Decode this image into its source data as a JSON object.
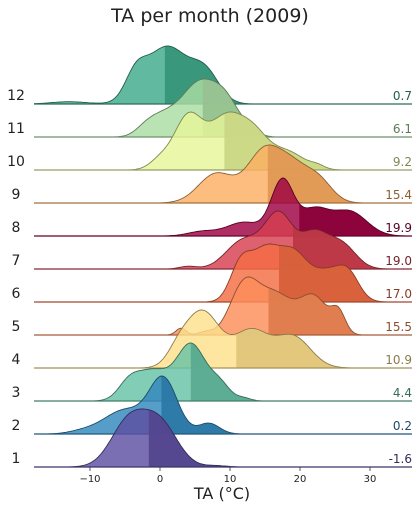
{
  "chart_data": {
    "type": "ridgeline",
    "title": "TA per month (2009)",
    "xlabel": "TA (°C)",
    "xlim": [
      -18,
      36
    ],
    "xticks": [
      "−10",
      "0",
      "10",
      "20",
      "30"
    ],
    "xtick_values": [
      -10,
      0,
      10,
      20,
      30
    ],
    "series": [
      {
        "name": "1",
        "mean": "-1.6",
        "color": "#5e4fa2",
        "peaks": [
          [
            -4.5,
            2.5,
            1.0
          ],
          [
            0,
            2.5,
            0.95
          ],
          [
            8,
            1.5,
            0.03
          ]
        ]
      },
      {
        "name": "2",
        "mean": "0.2",
        "color": "#3288bd",
        "peaks": [
          [
            0.5,
            2.0,
            1.0
          ],
          [
            -5,
            3.0,
            0.45
          ],
          [
            -11,
            2.0,
            0.05
          ],
          [
            7,
            1.5,
            0.2
          ]
        ]
      },
      {
        "name": "3",
        "mean": "4.4",
        "color": "#66c2a5",
        "peaks": [
          [
            4.5,
            2.0,
            1.0
          ],
          [
            -1,
            2.5,
            0.55
          ],
          [
            -4.5,
            1.5,
            0.25
          ],
          [
            8.5,
            1.5,
            0.3
          ],
          [
            12,
            1.0,
            0.05
          ]
        ]
      },
      {
        "name": "4",
        "mean": "10.9",
        "color": "#fee08b",
        "peaks": [
          [
            6,
            2.5,
            1.0
          ],
          [
            13,
            2.5,
            0.65
          ],
          [
            19,
            2.5,
            0.55
          ],
          [
            2.5,
            1.5,
            0.2
          ]
        ]
      },
      {
        "name": "5",
        "mean": "15.5",
        "color": "#fc8d59",
        "peaks": [
          [
            12,
            2.0,
            0.85
          ],
          [
            16.5,
            2.5,
            0.7
          ],
          [
            22,
            2.0,
            0.65
          ],
          [
            25.5,
            1.0,
            0.35
          ],
          [
            3,
            0.7,
            0.12
          ],
          [
            6.5,
            1.0,
            0.05
          ]
        ]
      },
      {
        "name": "6",
        "mean": "17.0",
        "color": "#f46d43",
        "peaks": [
          [
            11.5,
            1.5,
            0.65
          ],
          [
            15,
            2.0,
            0.9
          ],
          [
            19,
            2.0,
            0.8
          ],
          [
            24,
            2.5,
            0.55
          ],
          [
            27,
            1.5,
            0.35
          ]
        ]
      },
      {
        "name": "7",
        "mean": "19.0",
        "color": "#d53e4f",
        "peaks": [
          [
            12,
            2.5,
            0.55
          ],
          [
            17,
            2.0,
            1.0
          ],
          [
            22,
            2.0,
            0.65
          ],
          [
            26,
            2.0,
            0.45
          ],
          [
            4,
            1.2,
            0.05
          ]
        ]
      },
      {
        "name": "8",
        "mean": "19.9",
        "color": "#9e0142",
        "peaks": [
          [
            17.5,
            1.6,
            1.0
          ],
          [
            22,
            2.0,
            0.45
          ],
          [
            27,
            2.5,
            0.45
          ],
          [
            12,
            2.5,
            0.25
          ],
          [
            6,
            2.0,
            0.08
          ]
        ]
      },
      {
        "name": "9",
        "mean": "15.4",
        "color": "#fdae61",
        "peaks": [
          [
            15,
            2.5,
            1.0
          ],
          [
            8,
            2.5,
            0.55
          ],
          [
            22.5,
            2.0,
            0.45
          ],
          [
            19,
            2.0,
            0.5
          ]
        ]
      },
      {
        "name": "10",
        "mean": "9.2",
        "color": "#e6f598",
        "peaks": [
          [
            4,
            2.0,
            0.85
          ],
          [
            9.5,
            2.5,
            0.85
          ],
          [
            13.5,
            2.0,
            0.45
          ],
          [
            18,
            2.5,
            0.3
          ],
          [
            0,
            1.5,
            0.15
          ],
          [
            22.5,
            1.0,
            0.05
          ]
        ]
      },
      {
        "name": "11",
        "mean": "6.1",
        "color": "#abdda4",
        "peaks": [
          [
            5.5,
            2.5,
            1.0
          ],
          [
            9.5,
            2.0,
            0.6
          ],
          [
            0.5,
            2.0,
            0.35
          ],
          [
            -2,
            1.5,
            0.15
          ],
          [
            13,
            1.2,
            0.08
          ]
        ]
      },
      {
        "name": "12",
        "mean": "0.7",
        "color": "#3eaa8a",
        "peaks": [
          [
            1,
            3.0,
            1.0
          ],
          [
            -3.5,
            1.5,
            0.4
          ],
          [
            6.5,
            2.0,
            0.5
          ],
          [
            -13,
            2.5,
            0.04
          ]
        ]
      }
    ]
  }
}
